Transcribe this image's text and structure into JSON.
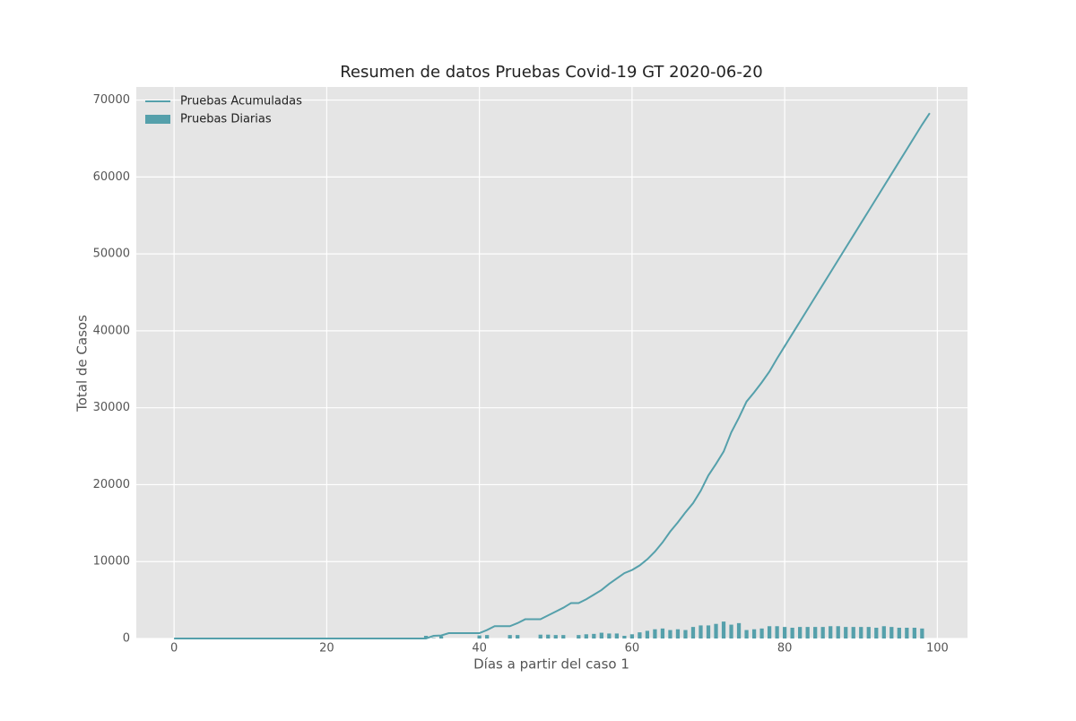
{
  "chart_data": {
    "type": "line_bar",
    "title": "Resumen de datos Pruebas Covid-19 GT 2020-06-20",
    "x_label": "Días a partir del caso 1",
    "y_label": "Total de Casos",
    "x": [
      0,
      1,
      2,
      3,
      4,
      5,
      6,
      7,
      8,
      9,
      10,
      11,
      12,
      13,
      14,
      15,
      16,
      17,
      18,
      19,
      20,
      21,
      22,
      23,
      24,
      25,
      26,
      27,
      28,
      29,
      30,
      31,
      32,
      33,
      34,
      35,
      36,
      37,
      38,
      39,
      40,
      41,
      42,
      43,
      44,
      45,
      46,
      47,
      48,
      49,
      50,
      51,
      52,
      53,
      54,
      55,
      56,
      57,
      58,
      59,
      60,
      61,
      62,
      63,
      64,
      65,
      66,
      67,
      68,
      69,
      70,
      71,
      72,
      73,
      74,
      75,
      76,
      77,
      78,
      79,
      80,
      81,
      82,
      83,
      84,
      85,
      86,
      87,
      88,
      89,
      90,
      91,
      92,
      93,
      94,
      95,
      96,
      97,
      98,
      99
    ],
    "series": [
      {
        "name": "Pruebas Acumuladas",
        "kind": "line",
        "color": "#55a0ab",
        "values": [
          0,
          0,
          0,
          0,
          0,
          0,
          0,
          0,
          0,
          0,
          0,
          0,
          0,
          0,
          0,
          0,
          0,
          0,
          0,
          0,
          0,
          0,
          0,
          0,
          0,
          0,
          0,
          0,
          0,
          0,
          0,
          0,
          0,
          0,
          350,
          400,
          700,
          700,
          700,
          700,
          700,
          1100,
          1600,
          1600,
          1600,
          2000,
          2500,
          2500,
          2500,
          3000,
          3500,
          4000,
          4600,
          4600,
          5100,
          5700,
          6300,
          7100,
          7800,
          8500,
          8900,
          9500,
          10300,
          11300,
          12500,
          13900,
          15100,
          16400,
          17600,
          19200,
          21200,
          22700,
          24300,
          26800,
          28700,
          30800,
          32000,
          33300,
          34700,
          36400,
          38000,
          39600,
          41200,
          42800,
          44400,
          46000,
          47600,
          49200,
          50800,
          52400,
          54000,
          55600,
          57200,
          58800,
          60400,
          62000,
          63600,
          65200,
          66800,
          68300
        ]
      },
      {
        "name": "Pruebas Diarias",
        "kind": "bar",
        "color": "#55a0ab",
        "values": [
          0,
          0,
          0,
          0,
          0,
          0,
          0,
          0,
          0,
          0,
          0,
          0,
          0,
          0,
          0,
          0,
          0,
          0,
          0,
          0,
          0,
          0,
          0,
          0,
          0,
          0,
          0,
          0,
          0,
          0,
          0,
          0,
          0,
          350,
          50,
          300,
          0,
          0,
          0,
          0,
          400,
          450,
          0,
          0,
          450,
          450,
          0,
          0,
          500,
          500,
          450,
          450,
          0,
          450,
          550,
          600,
          750,
          650,
          650,
          350,
          550,
          800,
          1000,
          1200,
          1300,
          1100,
          1200,
          1100,
          1500,
          1700,
          1700,
          1900,
          2200,
          1800,
          2000,
          1100,
          1200,
          1300,
          1600,
          1600,
          1500,
          1400,
          1500,
          1500,
          1500,
          1500,
          1600,
          1600,
          1500,
          1500,
          1500,
          1500,
          1400,
          1600,
          1500,
          1400,
          1400,
          1400,
          1300,
          0
        ]
      }
    ],
    "xlim": [
      -4.95,
      103.95
    ],
    "ylim": [
      0,
      71700
    ],
    "xticks": [
      0,
      20,
      40,
      60,
      80,
      100
    ],
    "yticks": [
      0,
      10000,
      20000,
      30000,
      40000,
      50000,
      60000,
      70000
    ],
    "grid": true,
    "legend": "upper left"
  }
}
